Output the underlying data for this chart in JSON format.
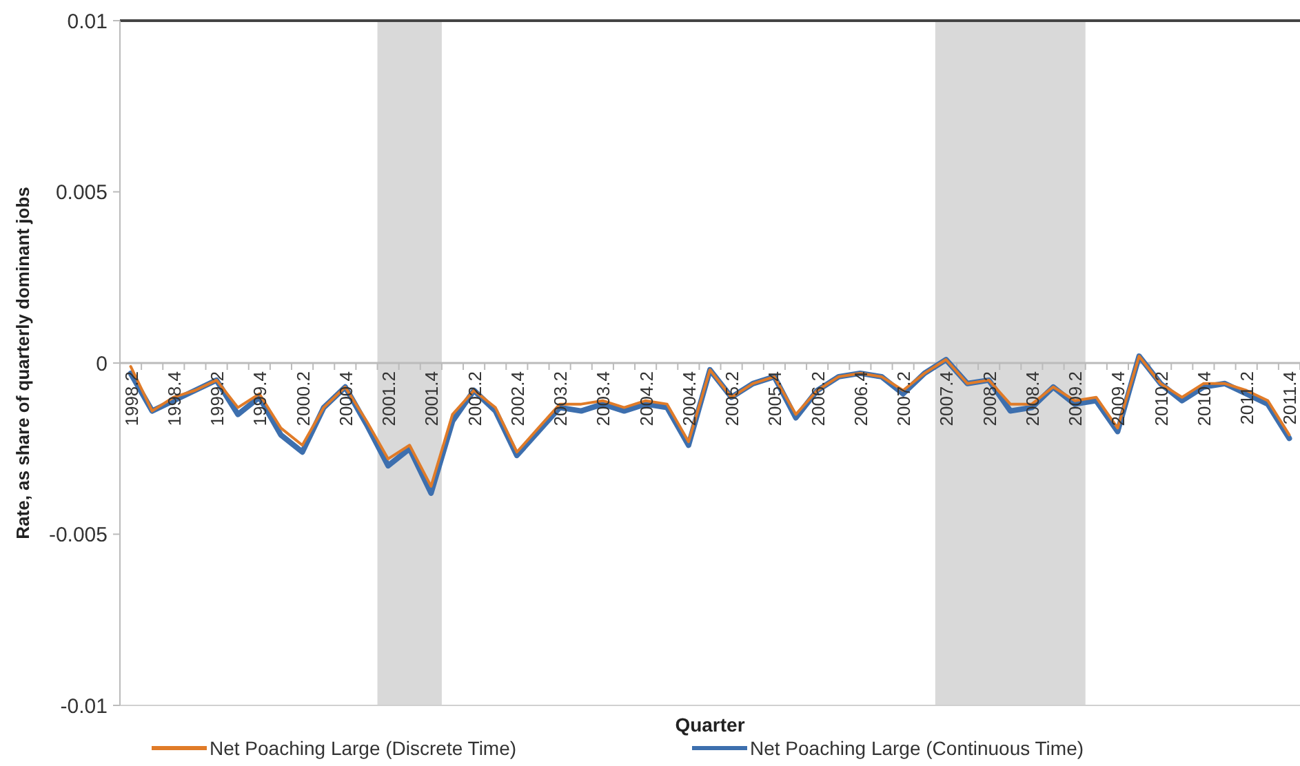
{
  "chart_data": {
    "type": "line",
    "xlabel": "Quarter",
    "ylabel": "Rate, as share of quarterly dominant jobs",
    "categories": [
      "1998.2",
      null,
      "1998.4",
      null,
      "1999.2",
      null,
      "1999.4",
      null,
      "2000.2",
      null,
      "2000.4",
      null,
      "2001.2",
      null,
      "2001.4",
      null,
      "2002.2",
      null,
      "2002.4",
      null,
      "2003.2",
      null,
      "2003.4",
      null,
      "2004.2",
      null,
      "2004.4",
      null,
      "2005.2",
      null,
      "2005.4",
      null,
      "2006.2",
      null,
      "2006.4",
      null,
      "2007.2",
      null,
      "2007.4",
      null,
      "2008.2",
      null,
      "2008.4",
      null,
      "2009.2",
      null,
      "2009.4",
      null,
      "2010.2",
      null,
      "2010.4",
      null,
      "2011.2",
      null,
      "2011.4"
    ],
    "series": [
      {
        "name": "Net Poaching Large (Discrete Time)",
        "color": "#e07b28",
        "values": [
          -0.0001,
          -0.0014,
          -0.001,
          -0.0008,
          -0.0005,
          -0.0013,
          -0.0009,
          -0.0019,
          -0.0024,
          -0.0013,
          -0.0007,
          -0.0017,
          -0.0028,
          -0.0024,
          -0.0036,
          -0.0015,
          -0.0008,
          -0.0013,
          -0.0026,
          -0.0019,
          -0.0012,
          -0.0012,
          -0.0011,
          -0.0013,
          -0.0011,
          -0.0012,
          -0.0023,
          -0.0002,
          -0.001,
          -0.0006,
          -0.0004,
          -0.0015,
          -0.0008,
          -0.0004,
          -0.0003,
          -0.0004,
          -0.0008,
          -0.0003,
          0.0001,
          -0.0006,
          -0.0005,
          -0.0012,
          -0.0012,
          -0.0007,
          -0.0011,
          -0.001,
          -0.0019,
          0.0002,
          -0.0006,
          -0.001,
          -0.0006,
          -0.0006,
          -0.0008,
          -0.0011,
          -0.0021
        ]
      },
      {
        "name": "Net Poaching Large (Continuous Time)",
        "color": "#3d6fae",
        "values": [
          -0.0003,
          -0.0014,
          -0.0011,
          -0.0008,
          -0.0005,
          -0.0015,
          -0.001,
          -0.0021,
          -0.0026,
          -0.0013,
          -0.0007,
          -0.0018,
          -0.003,
          -0.0025,
          -0.0038,
          -0.0017,
          -0.0008,
          -0.0014,
          -0.0027,
          -0.002,
          -0.0013,
          -0.0014,
          -0.0012,
          -0.0014,
          -0.0012,
          -0.0013,
          -0.0024,
          -0.0002,
          -0.001,
          -0.0006,
          -0.0004,
          -0.0016,
          -0.0008,
          -0.0004,
          -0.0003,
          -0.0004,
          -0.0009,
          -0.0003,
          0.0001,
          -0.0006,
          -0.0005,
          -0.0014,
          -0.0013,
          -0.0007,
          -0.0012,
          -0.0011,
          -0.002,
          0.0002,
          -0.0006,
          -0.0011,
          -0.0007,
          -0.0006,
          -0.0009,
          -0.0012,
          -0.0022
        ]
      }
    ],
    "ylim": [
      -0.01,
      0.01
    ],
    "yticks": [
      -0.01,
      -0.005,
      0,
      0.005,
      0.01
    ],
    "bands": [
      {
        "axis": "x",
        "from": "2001.2",
        "to": "2001.4",
        "color": "#d9d9d9"
      },
      {
        "axis": "x",
        "from": "2007.4",
        "to": "2009.2",
        "color": "#d9d9d9"
      }
    ],
    "grid": false,
    "legend": "bottom",
    "marker": "none",
    "line_style": "solid"
  }
}
